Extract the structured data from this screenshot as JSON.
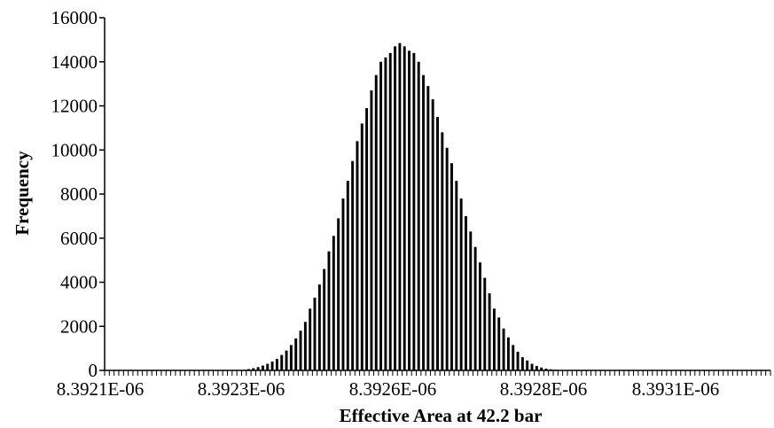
{
  "chart_data": {
    "type": "bar",
    "title": "",
    "xlabel": "Effective Area at 42.2 bar",
    "ylabel": "Frequency",
    "ylim": [
      0,
      16000
    ],
    "yticks": [
      0,
      2000,
      4000,
      6000,
      8000,
      10000,
      12000,
      14000,
      16000
    ],
    "xtick_labels": [
      "8.3921E-06",
      "8.3923E-06",
      "8.3926E-06",
      "8.3928E-06",
      "8.3931E-06"
    ],
    "bar_color": "#000000",
    "grid": false,
    "legend": "none",
    "bins": 145,
    "values": [
      0,
      0,
      0,
      0,
      0,
      0,
      0,
      0,
      0,
      0,
      0,
      0,
      0,
      0,
      0,
      0,
      0,
      0,
      0,
      0,
      0,
      0,
      0,
      0,
      0,
      0,
      0,
      0,
      10,
      30,
      60,
      100,
      150,
      220,
      300,
      400,
      520,
      700,
      900,
      1150,
      1450,
      1800,
      2200,
      2800,
      3300,
      3900,
      4600,
      5400,
      6100,
      6900,
      7800,
      8600,
      9500,
      10400,
      11200,
      11900,
      12700,
      13400,
      14000,
      14200,
      14400,
      14700,
      14850,
      14700,
      14500,
      14400,
      14000,
      13400,
      12900,
      12300,
      11500,
      10800,
      10100,
      9400,
      8600,
      7800,
      7000,
      6300,
      5600,
      4900,
      4200,
      3500,
      2800,
      2400,
      1900,
      1500,
      1150,
      850,
      600,
      450,
      300,
      200,
      130,
      80,
      50,
      30,
      15,
      8,
      0,
      0,
      0,
      0,
      0,
      0,
      0,
      0,
      0,
      0,
      0,
      0,
      0,
      0,
      0,
      0,
      0,
      0,
      0,
      0,
      0,
      0,
      0,
      0,
      0,
      0,
      0,
      0,
      0,
      0,
      0,
      0,
      0,
      0,
      0,
      0,
      0,
      0,
      0,
      0,
      0,
      0,
      0
    ]
  }
}
